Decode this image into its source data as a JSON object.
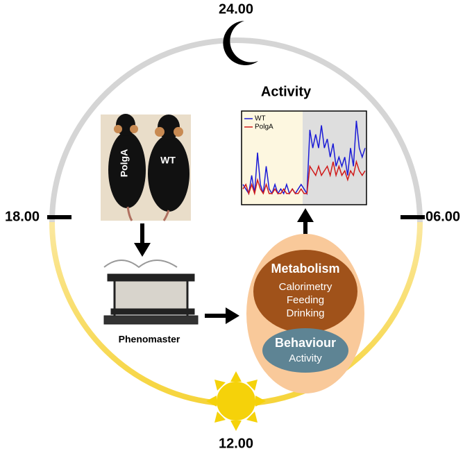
{
  "clock": {
    "top": "24.00",
    "right": "06.00",
    "bottom": "12.00",
    "left": "18.00"
  },
  "mice": {
    "left_label": "PolgA",
    "right_label": "WT"
  },
  "device": {
    "label": "Phenomaster"
  },
  "metabolism": {
    "title": "Metabolism",
    "items": [
      "Calorimetry",
      "Feeding",
      "Drinking"
    ]
  },
  "behaviour": {
    "title": "Behaviour",
    "items": [
      "Activity"
    ]
  },
  "activity_chart": {
    "type": "line",
    "title": "Activity",
    "series": [
      {
        "name": "WT",
        "color": "#1a1ad6",
        "values": [
          2,
          1.5,
          1,
          3,
          1,
          5.5,
          2,
          1,
          4,
          1.5,
          1,
          2,
          1,
          1.5,
          1,
          2,
          1,
          1.5,
          1,
          1.5,
          2,
          1.5,
          1,
          8,
          6,
          7.5,
          6,
          8.5,
          6,
          7,
          5,
          6.5,
          4,
          5,
          4,
          5,
          3,
          6,
          4,
          9,
          6,
          5,
          6
        ]
      },
      {
        "name": "PolgA",
        "color": "#d01a1a",
        "values": [
          1.5,
          2,
          1,
          2,
          1,
          2.5,
          1.5,
          1,
          2,
          1,
          1,
          1.5,
          1,
          1,
          1.5,
          1,
          1,
          1.5,
          1,
          1,
          1.5,
          1,
          1,
          4,
          3.5,
          3,
          4,
          3,
          3.5,
          4,
          3,
          4.5,
          3,
          4,
          3,
          3.5,
          2.5,
          3.5,
          3,
          4.5,
          3.5,
          3,
          3.5
        ]
      }
    ]
  }
}
